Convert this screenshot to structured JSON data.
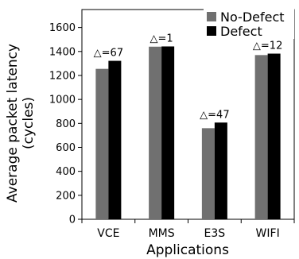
{
  "chart_data": {
    "type": "bar",
    "categories": [
      "VCE",
      "MMS",
      "E3S",
      "WIFI"
    ],
    "series": [
      {
        "name": "No-Defect",
        "values": [
          1255,
          1440,
          760,
          1370
        ],
        "color": "#707070"
      },
      {
        "name": "Defect",
        "values": [
          1322,
          1442,
          807,
          1382
        ],
        "color": "#000000"
      }
    ],
    "annotations": [
      "△=67",
      "△=1",
      "△=47",
      "△=12"
    ],
    "xlabel": "Applications",
    "ylabel_lines": [
      "Average packet latency",
      "(cycles)"
    ],
    "ylim": [
      0,
      1750
    ],
    "yticks": [
      0,
      200,
      400,
      600,
      800,
      1000,
      1200,
      1400,
      1600
    ],
    "grid": false,
    "legend_position": "top-right"
  }
}
